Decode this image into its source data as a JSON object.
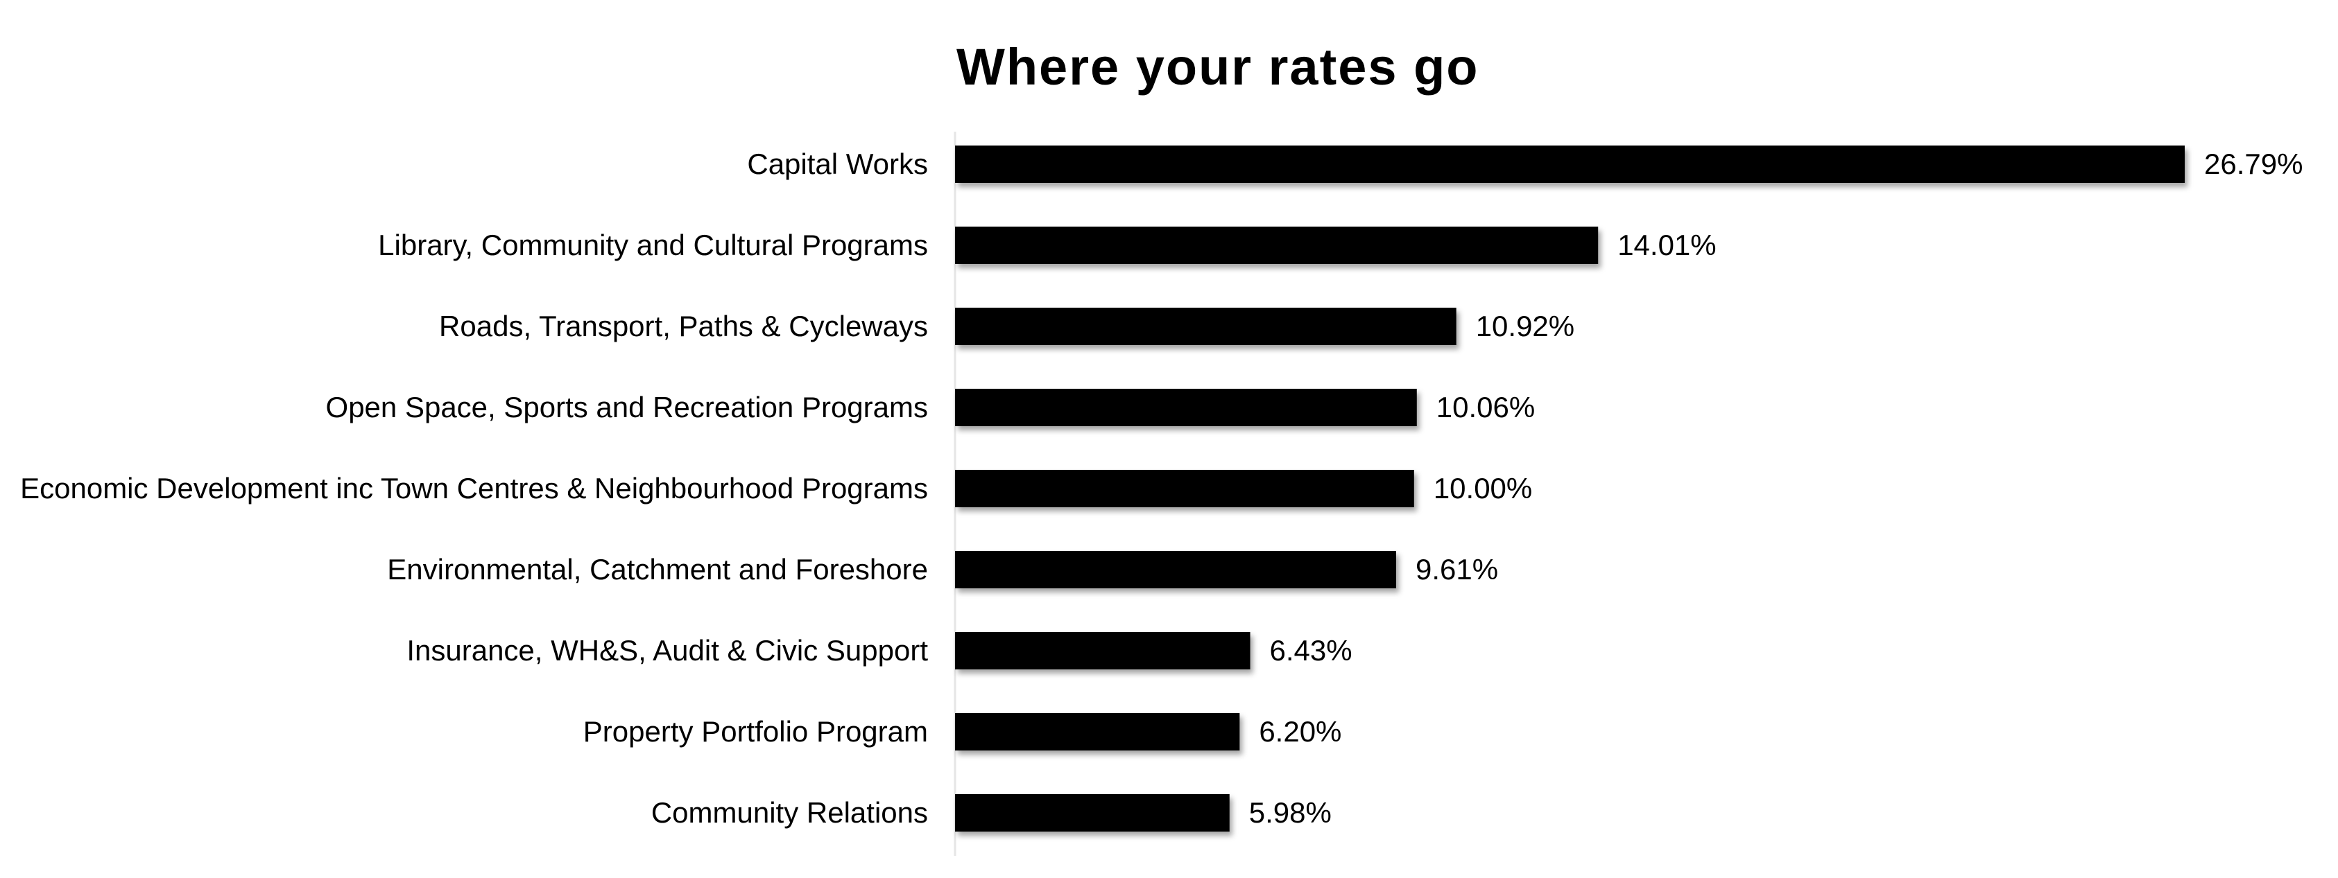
{
  "chart_data": {
    "type": "bar",
    "orientation": "horizontal",
    "title": "Where your rates go",
    "xlabel": "",
    "ylabel": "",
    "categories": [
      "Capital Works",
      "Library, Community and Cultural Programs",
      "Roads, Transport, Paths & Cycleways",
      "Open Space, Sports and Recreation Programs",
      "Economic Development inc Town Centres & Neighbourhood Programs",
      "Environmental, Catchment and Foreshore",
      "Insurance, WH&S, Audit & Civic Support",
      "Property Portfolio Program",
      "Community Relations"
    ],
    "values": [
      26.79,
      14.01,
      10.92,
      10.06,
      10.0,
      9.61,
      6.43,
      6.2,
      5.98
    ],
    "value_labels": [
      "26.79%",
      "14.01%",
      "10.92%",
      "10.06%",
      "10.00%",
      "9.61%",
      "6.43%",
      "6.20%",
      "5.98%"
    ],
    "xlim": [
      0,
      26.79
    ],
    "grid": false,
    "legend": "none",
    "bar_color": "#000000",
    "axis_color": "#e6e6e6"
  }
}
